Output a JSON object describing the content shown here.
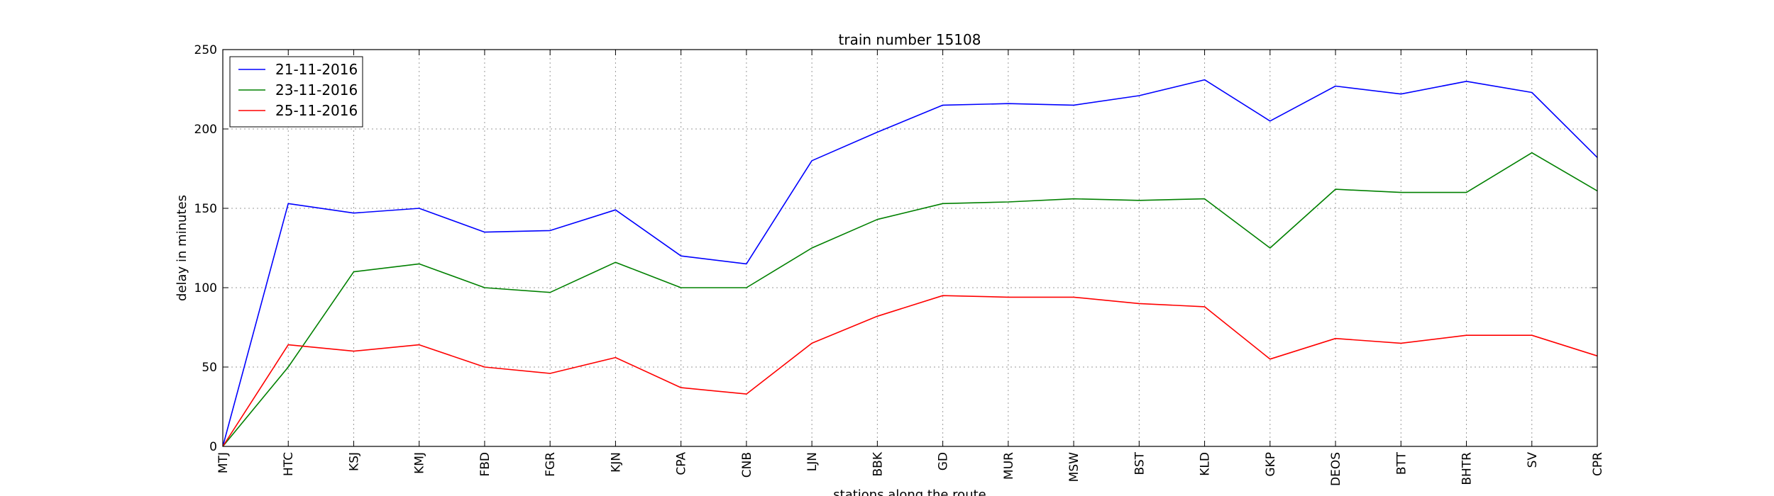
{
  "chart_data": {
    "type": "line",
    "title": "train number 15108",
    "xlabel": "stations along the route",
    "ylabel": "delay in minutes",
    "categories": [
      "MTJ",
      "HTC",
      "KSJ",
      "KMJ",
      "FBD",
      "FGR",
      "KJN",
      "CPA",
      "CNB",
      "LJN",
      "BBK",
      "GD",
      "MUR",
      "MSW",
      "BST",
      "KLD",
      "GKP",
      "DEOS",
      "BTT",
      "BHTR",
      "SV",
      "CPR"
    ],
    "ylim": [
      0,
      250
    ],
    "yticks": [
      0,
      50,
      100,
      150,
      200,
      250
    ],
    "grid": true,
    "legend_position": "top-left",
    "series": [
      {
        "name": "21-11-2016",
        "color": "#0000ff",
        "values": [
          0,
          153,
          147,
          150,
          135,
          136,
          149,
          120,
          115,
          180,
          198,
          215,
          216,
          215,
          221,
          231,
          205,
          227,
          222,
          230,
          223,
          182
        ]
      },
      {
        "name": "23-11-2016",
        "color": "#008000",
        "values": [
          0,
          50,
          110,
          115,
          100,
          97,
          116,
          100,
          100,
          125,
          143,
          153,
          154,
          156,
          155,
          156,
          125,
          162,
          160,
          160,
          185,
          161
        ]
      },
      {
        "name": "25-11-2016",
        "color": "#ff0000",
        "values": [
          0,
          64,
          60,
          64,
          50,
          46,
          56,
          37,
          33,
          65,
          82,
          95,
          94,
          94,
          90,
          88,
          55,
          68,
          65,
          70,
          70,
          57
        ]
      }
    ]
  }
}
